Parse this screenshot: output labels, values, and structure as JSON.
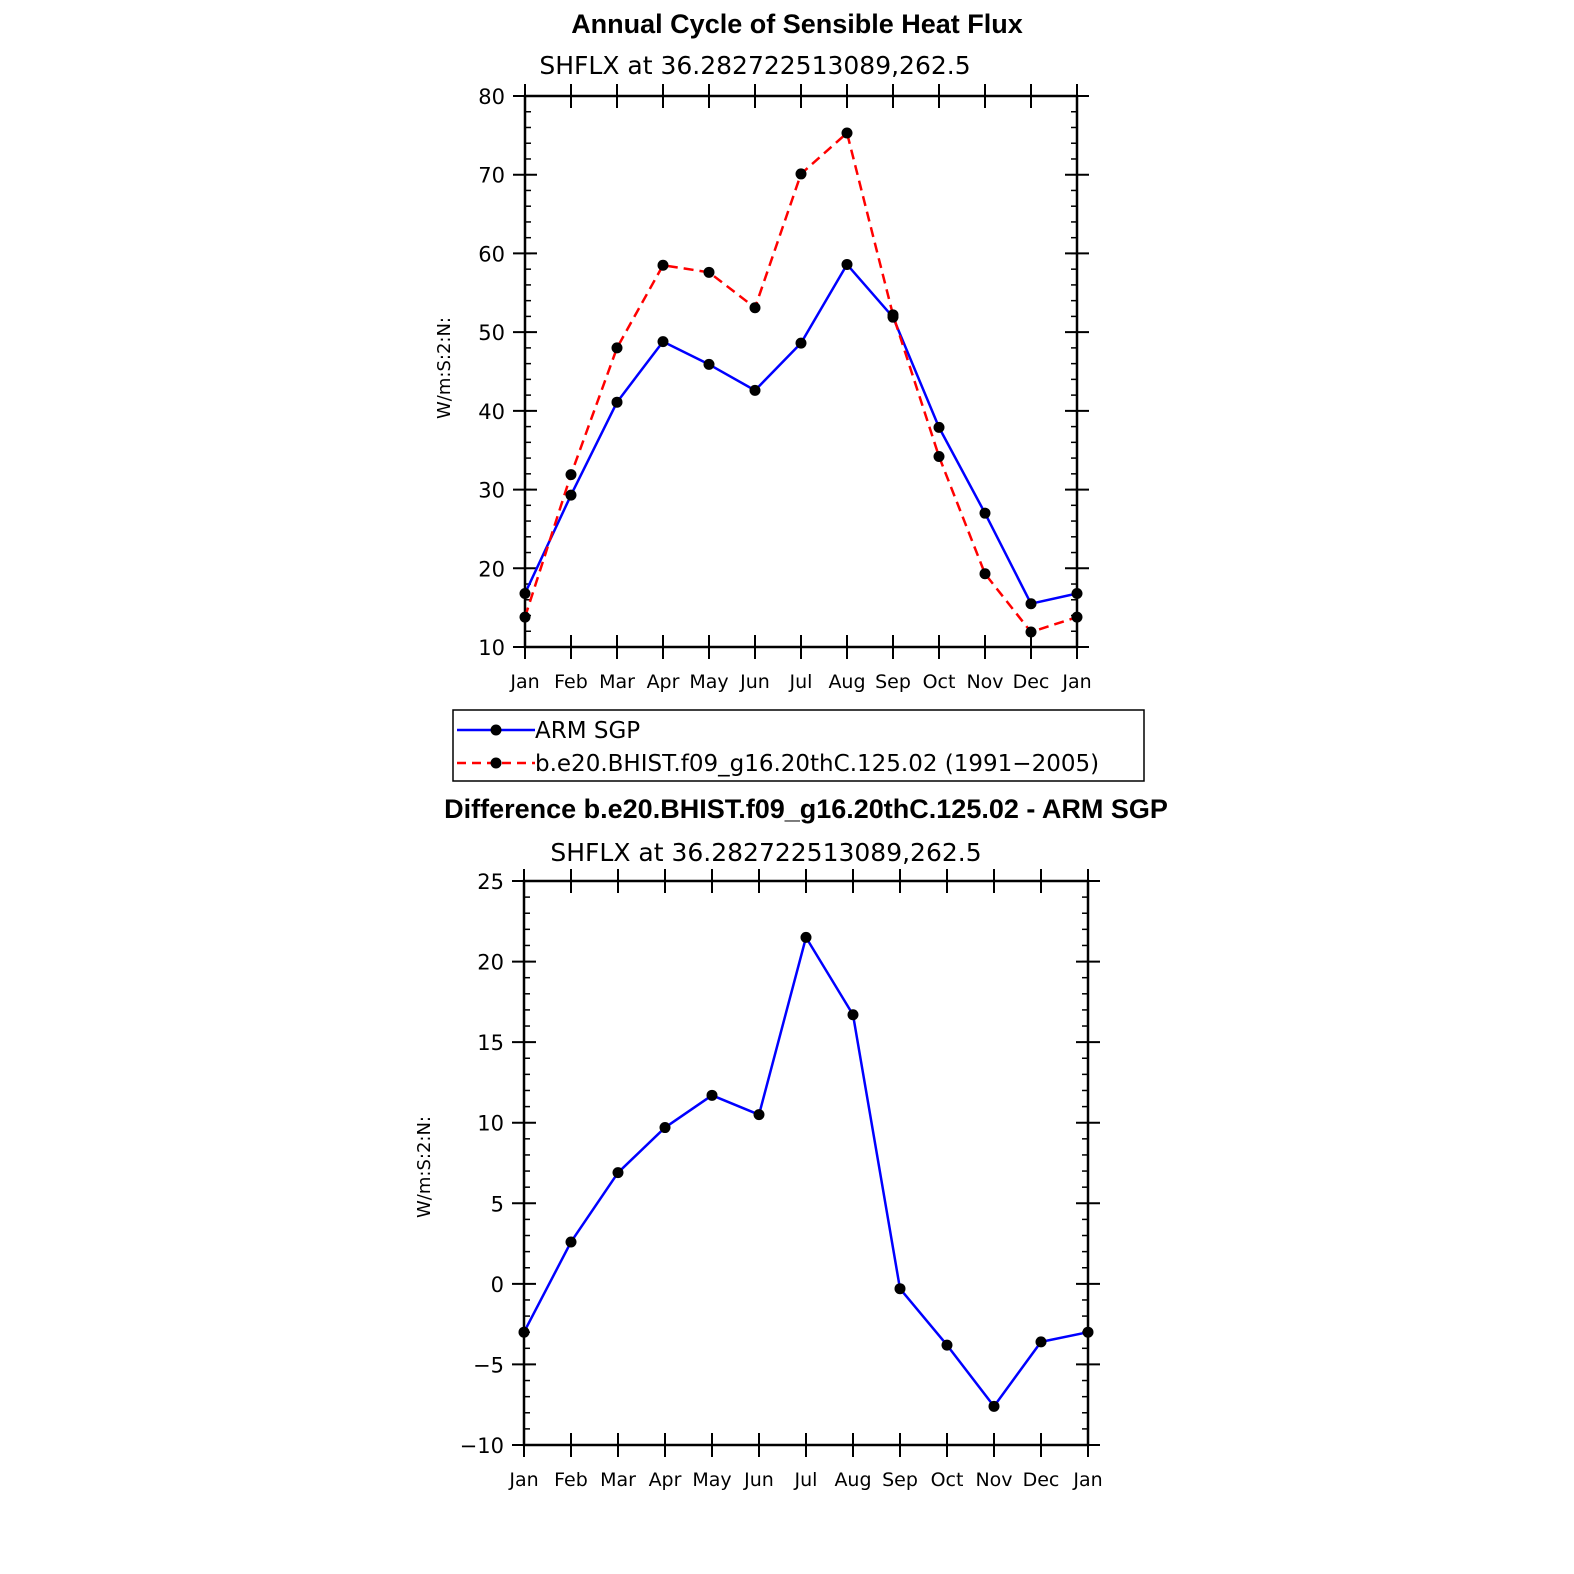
{
  "chart_data": [
    {
      "type": "line",
      "title": "Annual Cycle of Sensible Heat Flux",
      "subtitle": "SHFLX  at  36.282722513089,262.5",
      "ylabel": "W/m:S:2:N:",
      "xlabel": "",
      "ylim": [
        10,
        80
      ],
      "yticks": [
        "80",
        "70",
        "60",
        "50",
        "40",
        "30",
        "20",
        "10"
      ],
      "ytick_values": [
        80,
        70,
        60,
        50,
        40,
        30,
        20,
        10
      ],
      "categories": [
        "Jan",
        "Feb",
        "Mar",
        "Apr",
        "May",
        "Jun",
        "Jul",
        "Aug",
        "Sep",
        "Oct",
        "Nov",
        "Dec",
        "Jan"
      ],
      "series": [
        {
          "name": "ARM  SGP",
          "color": "#0000ff",
          "dash": "solid",
          "values": [
            16.8,
            29.3,
            41.1,
            48.8,
            45.9,
            42.6,
            48.6,
            58.6,
            51.9,
            37.9,
            27.0,
            15.5,
            16.8
          ]
        },
        {
          "name": "b.e20.BHIST.f09_g16.20thC.125.02  (1991−2005)",
          "color": "#ff0000",
          "dash": "dashed",
          "values": [
            13.8,
            31.9,
            48.0,
            58.5,
            57.6,
            53.1,
            70.1,
            75.3,
            52.2,
            34.2,
            19.3,
            11.9,
            13.8
          ]
        }
      ],
      "legend": "bottom"
    },
    {
      "type": "line",
      "title": "Difference b.e20.BHIST.f09_g16.20thC.125.02 - ARM SGP",
      "subtitle": "SHFLX  at  36.282722513089,262.5",
      "ylabel": "W/m:S:2:N:",
      "xlabel": "",
      "ylim": [
        -10,
        25
      ],
      "yticks": [
        "25",
        "20",
        "15",
        "10",
        "5",
        "0",
        "−5",
        "−10"
      ],
      "ytick_values": [
        25,
        20,
        15,
        10,
        5,
        0,
        -5,
        -10
      ],
      "categories": [
        "Jan",
        "Feb",
        "Mar",
        "Apr",
        "May",
        "Jun",
        "Jul",
        "Aug",
        "Sep",
        "Oct",
        "Nov",
        "Dec",
        "Jan"
      ],
      "series": [
        {
          "name": "Difference",
          "color": "#0000ff",
          "dash": "solid",
          "values": [
            -3.0,
            2.6,
            6.9,
            9.7,
            11.7,
            10.5,
            21.5,
            16.7,
            -0.3,
            -3.8,
            -7.6,
            -3.6,
            -3.0
          ]
        }
      ]
    }
  ]
}
